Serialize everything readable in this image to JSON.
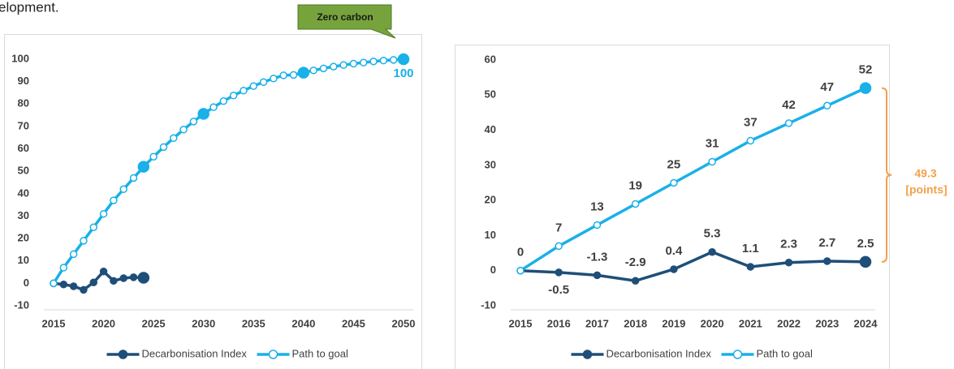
{
  "caption": "elopment.",
  "chart_data": [
    {
      "type": "line",
      "xlim": [
        2015,
        2050
      ],
      "xticks": [
        2015,
        2020,
        2025,
        2030,
        2035,
        2040,
        2045,
        2050
      ],
      "ylim": [
        -10,
        100
      ],
      "yticks": [
        -10,
        0,
        10,
        20,
        30,
        40,
        50,
        60,
        70,
        80,
        90,
        100
      ],
      "annotation": {
        "text": "Zero carbon",
        "x": 2050,
        "y": 100
      },
      "series": [
        {
          "name": "Decarbonisation Index",
          "color": "#1f4e79",
          "marker": "filled",
          "highlight_x": [
            2024
          ],
          "x": [
            2015,
            2016,
            2017,
            2018,
            2019,
            2020,
            2021,
            2022,
            2023,
            2024
          ],
          "values": [
            0,
            -0.5,
            -1.3,
            -2.9,
            0.4,
            5.3,
            1.1,
            2.3,
            2.7,
            2.5
          ]
        },
        {
          "name": "Path to goal",
          "color": "#1ab0e8",
          "marker": "open",
          "highlight_x": [
            2024,
            2030,
            2040,
            2050
          ],
          "x": [
            2015,
            2016,
            2017,
            2018,
            2019,
            2020,
            2021,
            2022,
            2023,
            2024,
            2025,
            2026,
            2027,
            2028,
            2029,
            2030,
            2031,
            2032,
            2033,
            2034,
            2035,
            2036,
            2037,
            2038,
            2039,
            2040,
            2041,
            2042,
            2043,
            2044,
            2045,
            2046,
            2047,
            2048,
            2049,
            2050
          ],
          "values": [
            0,
            7,
            13,
            19,
            25,
            31,
            37,
            42,
            47,
            52,
            56.5,
            60.8,
            64.8,
            68.6,
            72.2,
            75.6,
            78.6,
            81.3,
            83.8,
            86,
            88,
            89.8,
            91.4,
            92.8,
            93,
            94,
            95,
            95.9,
            96.7,
            97.4,
            98,
            98.5,
            99,
            99.4,
            99.7,
            100
          ],
          "value_labels": [
            null,
            null,
            null,
            null,
            null,
            null,
            null,
            null,
            null,
            null,
            null,
            null,
            null,
            null,
            null,
            null,
            null,
            null,
            null,
            null,
            null,
            null,
            null,
            null,
            null,
            null,
            null,
            null,
            null,
            null,
            null,
            null,
            null,
            null,
            null,
            "100"
          ]
        }
      ]
    },
    {
      "type": "line",
      "categories": [
        "2015",
        "2016",
        "2017",
        "2018",
        "2019",
        "2020",
        "2021",
        "2022",
        "2023",
        "2024"
      ],
      "ylim": [
        -10,
        60
      ],
      "yticks": [
        -10,
        0,
        10,
        20,
        30,
        40,
        50,
        60
      ],
      "annotation": {
        "value": 49.3,
        "unit": "[points]"
      },
      "series": [
        {
          "name": "Decarbonisation Index",
          "color": "#1f4e79",
          "marker": "filled",
          "highlight_x": [
            "2024"
          ],
          "values": [
            0,
            -0.5,
            -1.3,
            -2.9,
            0.4,
            5.3,
            1.1,
            2.3,
            2.7,
            2.5
          ],
          "value_labels": [
            null,
            "-0.5",
            "-1.3",
            "-2.9",
            "0.4",
            "5.3",
            "1.1",
            "2.3",
            "2.7",
            "2.5"
          ]
        },
        {
          "name": "Path to goal",
          "color": "#1ab0e8",
          "marker": "open",
          "highlight_x": [
            "2024"
          ],
          "values": [
            0,
            7,
            13,
            19,
            25,
            31,
            37,
            42,
            47,
            52
          ],
          "value_labels": [
            "0",
            "7",
            "13",
            "19",
            "25",
            "31",
            "37",
            "42",
            "47",
            "52"
          ]
        }
      ]
    }
  ]
}
